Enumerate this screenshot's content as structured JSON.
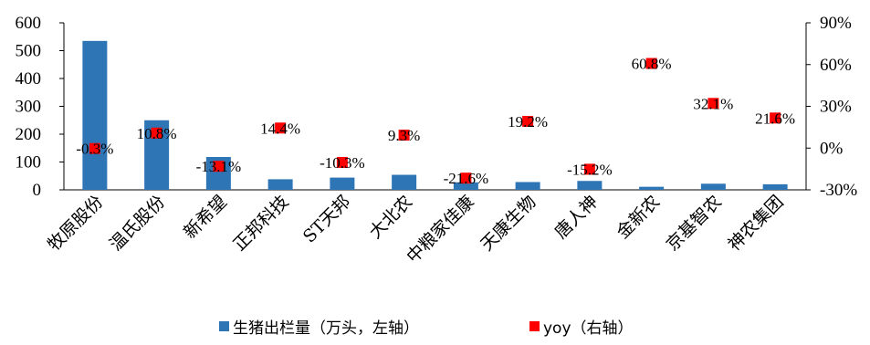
{
  "chart_data": {
    "type": "bar",
    "categories": [
      "牧原股份",
      "温氏股份",
      "新希望",
      "正邦科技",
      "ST天邦",
      "大北农",
      "中粮家佳康",
      "天康生物",
      "唐人神",
      "金新农",
      "京基智农",
      "神农集团"
    ],
    "series": [
      {
        "name": "生猪出栏量（万头，左轴）",
        "type": "bar",
        "axis": "left",
        "color": "#2e75b6",
        "values": [
          535,
          250,
          118,
          38,
          44,
          54,
          27,
          28,
          32,
          11,
          22,
          20
        ]
      },
      {
        "name": "yoy（右轴）",
        "type": "scatter",
        "axis": "right",
        "color": "#ff0000",
        "values": [
          -0.3,
          10.8,
          -13.1,
          14.4,
          -10.3,
          9.3,
          -21.6,
          19.2,
          -15.2,
          60.8,
          32.1,
          21.6
        ],
        "labels": [
          "-0.3%",
          "10.8%",
          "-13.1%",
          "14.4%",
          "-10.3%",
          "9.3%",
          "-21.6%",
          "19.2%",
          "-15.2%",
          "60.8%",
          "32.1%",
          "21.6%"
        ]
      }
    ],
    "y_left": {
      "min": 0,
      "max": 600,
      "ticks": [
        "0",
        "100",
        "200",
        "300",
        "400",
        "500",
        "600"
      ]
    },
    "y_right": {
      "min": -30,
      "max": 90,
      "ticks": [
        "-30%",
        "0%",
        "30%",
        "60%",
        "90%"
      ]
    },
    "grid": false,
    "legend_position": "bottom"
  }
}
